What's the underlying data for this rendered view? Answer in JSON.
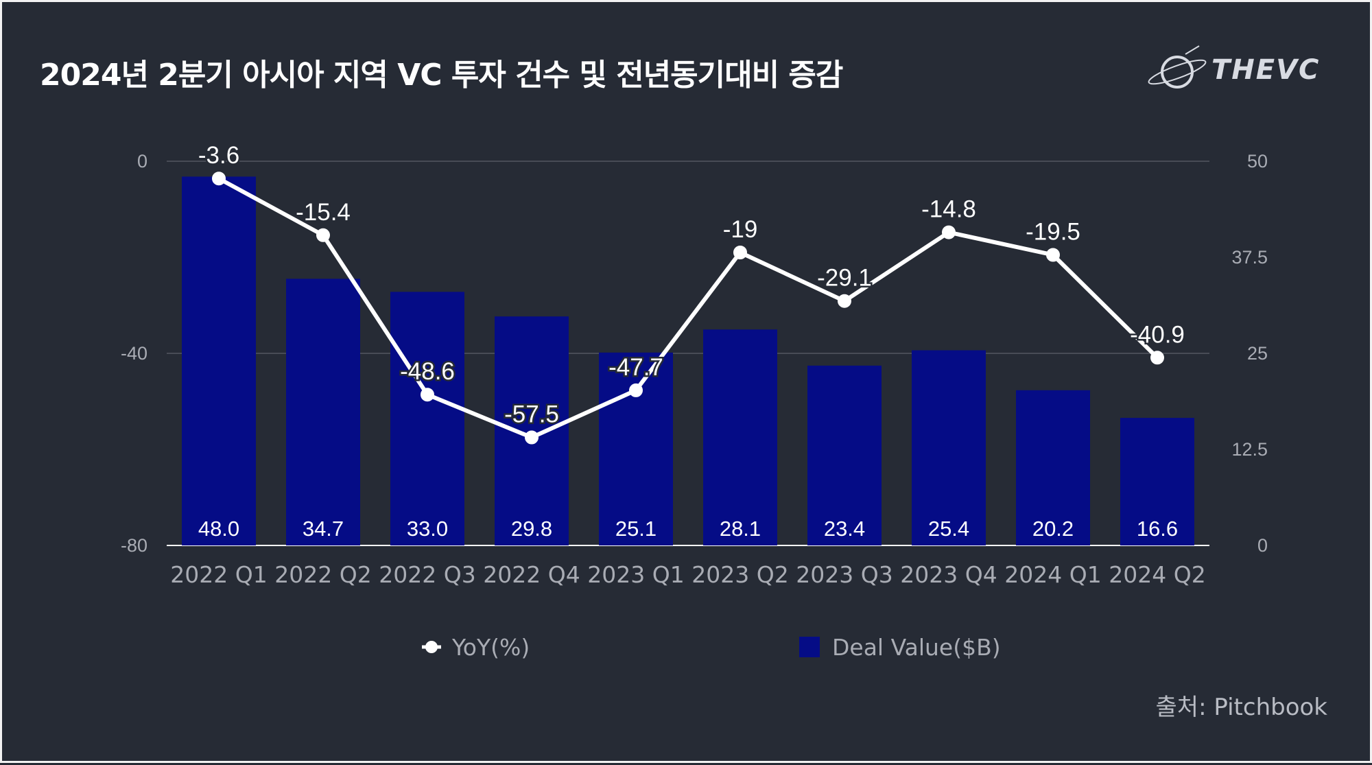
{
  "title": "2024년 2분기 아시아 지역 VC 투자 건수 및 전년동기대비 증감",
  "logo": {
    "name": "THEVC"
  },
  "source": "출처: Pitchbook",
  "colors": {
    "background": "#262b35",
    "bar": "#050c86",
    "line": "#ffffff",
    "axis_text": "#a9acb4"
  },
  "chart_data": {
    "type": "bar+line",
    "categories": [
      "2022 Q1",
      "2022 Q2",
      "2022 Q3",
      "2022 Q4",
      "2023 Q1",
      "2023 Q2",
      "2023 Q3",
      "2023 Q4",
      "2024 Q1",
      "2024 Q2"
    ],
    "series": [
      {
        "name": "Deal Value($B)",
        "type": "bar",
        "axis": "right",
        "values": [
          48.0,
          34.7,
          33.0,
          29.8,
          25.1,
          28.1,
          23.4,
          25.4,
          20.2,
          16.6
        ],
        "labels": [
          "48.0",
          "34.7",
          "33.0",
          "29.8",
          "25.1",
          "28.1",
          "23.4",
          "25.4",
          "20.2",
          "16.6"
        ]
      },
      {
        "name": "YoY(%)",
        "type": "line",
        "axis": "left",
        "values": [
          -3.6,
          -15.4,
          -48.6,
          -57.5,
          -47.7,
          -19,
          -29.1,
          -14.8,
          -19.5,
          -40.9
        ],
        "labels": [
          "-3.6",
          "-15.4",
          "-48.6",
          "-57.5",
          "-47.7",
          "-19",
          "-29.1",
          "-14.8",
          "-19.5",
          "-40.9"
        ]
      }
    ],
    "left_axis": {
      "range": [
        -80,
        0
      ],
      "ticks": [
        0,
        -40,
        -80
      ],
      "tick_labels": [
        "0",
        "-40",
        "-80"
      ]
    },
    "right_axis": {
      "range": [
        0,
        50
      ],
      "ticks": [
        50,
        37.5,
        25,
        12.5,
        0
      ],
      "tick_labels": [
        "50",
        "37.5",
        "25",
        "12.5",
        "0"
      ]
    },
    "legend": {
      "position": "bottom",
      "items": [
        "YoY(%)",
        "Deal Value($B)"
      ]
    },
    "grid": true
  }
}
